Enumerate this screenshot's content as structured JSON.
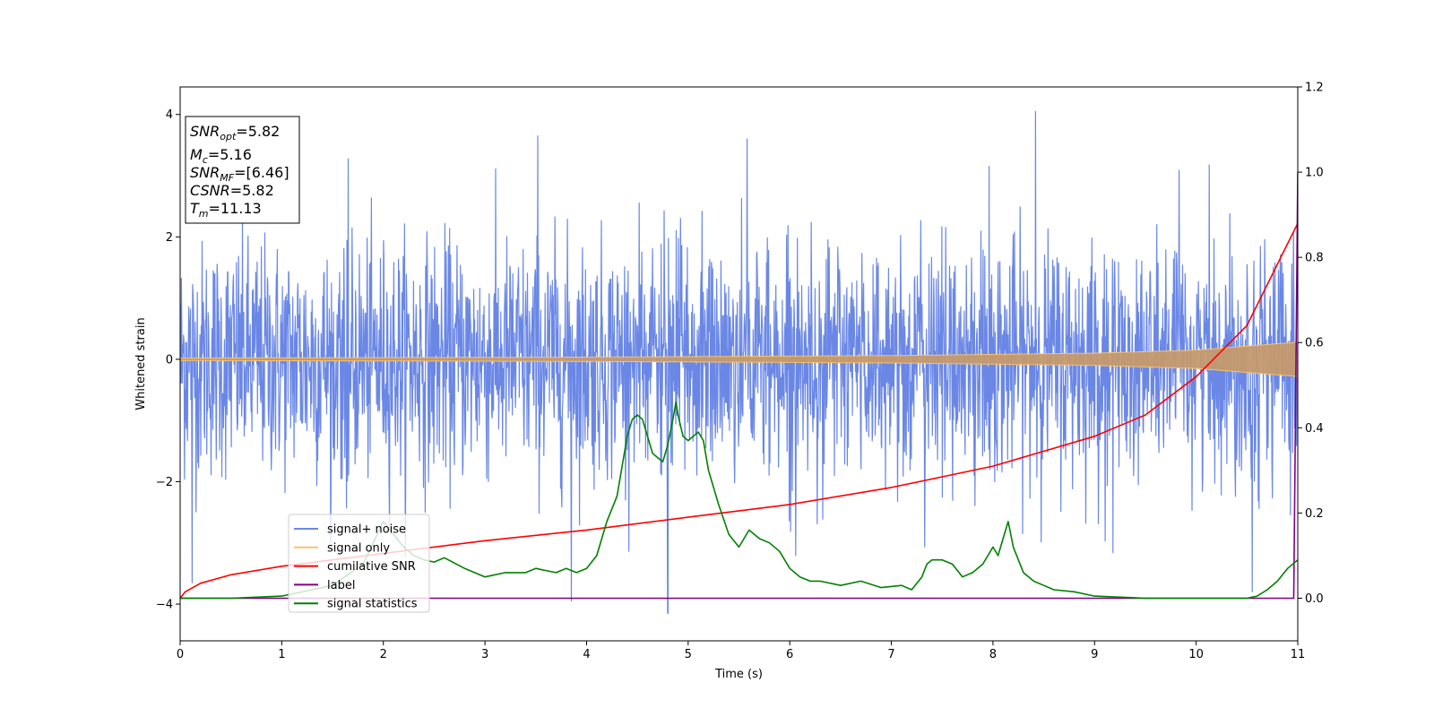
{
  "chart_data": {
    "type": "line",
    "xlabel": "Time (s)",
    "ylabel": "Whitened strain",
    "xlim": [
      0,
      11
    ],
    "ylim": [
      -4.6,
      4.45
    ],
    "y2lim": [
      -0.1,
      1.2
    ],
    "x_ticks": [
      "0",
      "1",
      "2",
      "3",
      "4",
      "5",
      "6",
      "7",
      "8",
      "9",
      "10",
      "11"
    ],
    "y_ticks": [
      "−4",
      "−2",
      "0",
      "2",
      "4"
    ],
    "y2_ticks": [
      "0.0",
      "0.2",
      "0.4",
      "0.6",
      "0.8",
      "1.0",
      "1.2"
    ],
    "grid": false,
    "legend_position": "lower-left",
    "info_box": {
      "snr_opt": {
        "main": "SNR",
        "sub": "opt",
        "value": "=5.82"
      },
      "mc": {
        "main": "M",
        "sub": "c",
        "value": "=5.16"
      },
      "snr_mf": {
        "main": "SNR",
        "sub": "MF",
        "value": "=[6.46]"
      },
      "csnr": {
        "main": "CSNR",
        "value": "=5.82"
      },
      "tm": {
        "main": "T",
        "sub": "m",
        "value": "=11.13"
      }
    },
    "series": [
      {
        "name": "signal+ noise",
        "color": "#6a87e6",
        "axis": "left",
        "noise_sigma": 0.95,
        "notable_peaks": [
          [
            3.52,
            3.65
          ],
          [
            5.58,
            3.6
          ],
          [
            8.42,
            4.05
          ],
          [
            4.8,
            -4.15
          ],
          [
            3.85,
            -3.95
          ],
          [
            0.12,
            -3.65
          ],
          [
            10.55,
            -3.8
          ]
        ]
      },
      {
        "name": "signal only",
        "color": "#f5c46e",
        "axis": "left",
        "envelope": [
          [
            0,
            0.02
          ],
          [
            4,
            0.035
          ],
          [
            7,
            0.06
          ],
          [
            9,
            0.1
          ],
          [
            10,
            0.15
          ],
          [
            11,
            0.28
          ]
        ]
      },
      {
        "name": "cumilative SNR",
        "color": "#ff0000",
        "axis": "right",
        "x": [
          0,
          0.05,
          0.2,
          0.5,
          1,
          1.5,
          2,
          3,
          4,
          5,
          6,
          7,
          8,
          9,
          9.5,
          10,
          10.5,
          11
        ],
        "y": [
          0.0,
          0.015,
          0.035,
          0.055,
          0.075,
          0.09,
          0.105,
          0.135,
          0.16,
          0.19,
          0.22,
          0.26,
          0.31,
          0.38,
          0.43,
          0.52,
          0.64,
          0.88
        ]
      },
      {
        "name": "label",
        "color": "#800080",
        "axis": "right",
        "x": [
          0,
          10.96,
          11.0
        ],
        "y": [
          0.0,
          0.0,
          1.0
        ]
      },
      {
        "name": "signal statistics",
        "color": "#008000",
        "axis": "right",
        "x": [
          0,
          0.5,
          1,
          1.5,
          1.8,
          2.0,
          2.1,
          2.2,
          2.3,
          2.4,
          2.5,
          2.6,
          2.8,
          3.0,
          3.2,
          3.4,
          3.5,
          3.6,
          3.7,
          3.8,
          3.9,
          4.0,
          4.1,
          4.2,
          4.3,
          4.4,
          4.45,
          4.5,
          4.55,
          4.6,
          4.65,
          4.7,
          4.75,
          4.8,
          4.85,
          4.88,
          4.9,
          4.95,
          5.0,
          5.05,
          5.1,
          5.15,
          5.2,
          5.3,
          5.4,
          5.5,
          5.6,
          5.7,
          5.8,
          5.9,
          6.0,
          6.1,
          6.2,
          6.3,
          6.5,
          6.7,
          6.9,
          7.1,
          7.2,
          7.3,
          7.35,
          7.4,
          7.5,
          7.6,
          7.7,
          7.8,
          7.9,
          8.0,
          8.05,
          8.1,
          8.15,
          8.2,
          8.3,
          8.4,
          8.5,
          8.6,
          8.8,
          9.0,
          9.5,
          10.0,
          10.5,
          10.6,
          10.7,
          10.8,
          10.9,
          11.0
        ],
        "y": [
          0.0,
          0.0,
          0.005,
          0.03,
          0.08,
          0.18,
          0.15,
          0.12,
          0.1,
          0.09,
          0.085,
          0.095,
          0.07,
          0.05,
          0.06,
          0.06,
          0.07,
          0.065,
          0.06,
          0.07,
          0.06,
          0.07,
          0.1,
          0.18,
          0.24,
          0.38,
          0.42,
          0.43,
          0.42,
          0.38,
          0.34,
          0.33,
          0.32,
          0.36,
          0.42,
          0.46,
          0.43,
          0.38,
          0.37,
          0.38,
          0.39,
          0.37,
          0.3,
          0.22,
          0.15,
          0.12,
          0.16,
          0.14,
          0.13,
          0.11,
          0.07,
          0.05,
          0.04,
          0.04,
          0.03,
          0.04,
          0.025,
          0.03,
          0.02,
          0.05,
          0.08,
          0.09,
          0.09,
          0.08,
          0.05,
          0.06,
          0.08,
          0.12,
          0.1,
          0.14,
          0.18,
          0.12,
          0.06,
          0.04,
          0.03,
          0.02,
          0.015,
          0.005,
          0.0,
          0.0,
          0.0,
          0.005,
          0.02,
          0.04,
          0.07,
          0.09
        ]
      }
    ]
  }
}
